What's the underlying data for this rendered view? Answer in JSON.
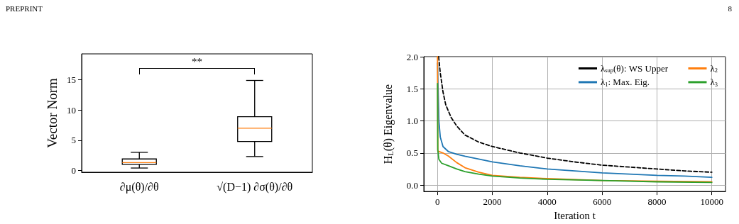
{
  "chart_data": [
    {
      "type": "box",
      "ylabel": "Vector Norm",
      "categories": [
        "∂μ(θ)/∂θ",
        "√(D−1) ∂σ(θ)/∂θ"
      ],
      "boxes": [
        {
          "low": 0.4,
          "q1": 1.0,
          "median": 1.3,
          "q3": 1.9,
          "high": 3.0
        },
        {
          "low": 2.3,
          "q1": 4.8,
          "median": 7.0,
          "q3": 8.9,
          "high": 14.9
        }
      ],
      "ylim": [
        -0.3,
        19.3
      ],
      "yticks": [
        0,
        5,
        10,
        15
      ],
      "grid": false,
      "legend": false,
      "annotations": [
        "PREPRINT",
        "**"
      ]
    },
    {
      "type": "line",
      "xlabel": "Iteration t",
      "ylabel": "H$_{L}$(θ) Eigenvalue",
      "series": [
        {
          "name": "λ$_{sup}$(θ): WS Upper",
          "color": "#000000",
          "line_style": "dashed",
          "x": [
            40,
            100,
            200,
            300,
            500,
            700,
            1000,
            1500,
            2000,
            3000,
            4000,
            5000,
            6000,
            7000,
            8000,
            9000,
            10000
          ],
          "values": [
            2.0,
            1.75,
            1.45,
            1.25,
            1.05,
            0.92,
            0.78,
            0.67,
            0.6,
            0.5,
            0.42,
            0.36,
            0.31,
            0.28,
            0.25,
            0.22,
            0.2
          ]
        },
        {
          "name": "λ$_{1}$: Max. Eig.",
          "color": "#1f77b4",
          "line_style": "solid",
          "x": [
            0,
            50,
            100,
            200,
            400,
            700,
            1000,
            2000,
            3000,
            4000,
            5000,
            6000,
            7000,
            8000,
            9000,
            10000
          ],
          "values": [
            1.9,
            1.0,
            0.75,
            0.6,
            0.52,
            0.48,
            0.45,
            0.36,
            0.3,
            0.25,
            0.22,
            0.19,
            0.17,
            0.15,
            0.14,
            0.12
          ]
        },
        {
          "name": "λ$_{2}$",
          "color": "#ff7f0e",
          "line_style": "solid",
          "x": [
            0,
            10,
            200,
            400,
            700,
            1000,
            1500,
            2000,
            3000,
            4000,
            6000,
            8000,
            10000
          ],
          "values": [
            2.0,
            0.53,
            0.5,
            0.45,
            0.35,
            0.27,
            0.2,
            0.15,
            0.12,
            0.1,
            0.07,
            0.06,
            0.05
          ]
        },
        {
          "name": "λ$_{3}$",
          "color": "#2ca02c",
          "line_style": "solid",
          "x": [
            0,
            10,
            50,
            150,
            400,
            700,
            1000,
            1500,
            2000,
            3000,
            4000,
            6000,
            8000,
            10000
          ],
          "values": [
            1.58,
            0.55,
            0.4,
            0.34,
            0.3,
            0.25,
            0.21,
            0.17,
            0.14,
            0.11,
            0.09,
            0.07,
            0.05,
            0.04
          ]
        }
      ],
      "xlim": [
        -500,
        10500
      ],
      "xticks": [
        0,
        2000,
        4000,
        6000,
        8000,
        10000
      ],
      "ylim": [
        -0.1,
        2.0
      ],
      "yticks": [
        {
          "value": 0,
          "label": "0.0"
        },
        0.5,
        {
          "value": 1,
          "label": "1.0"
        },
        1.5,
        {
          "value": 2,
          "label": "2.0"
        }
      ],
      "grid": true,
      "legend": "top right",
      "marker": "none",
      "annotations": [
        "8"
      ]
    }
  ]
}
